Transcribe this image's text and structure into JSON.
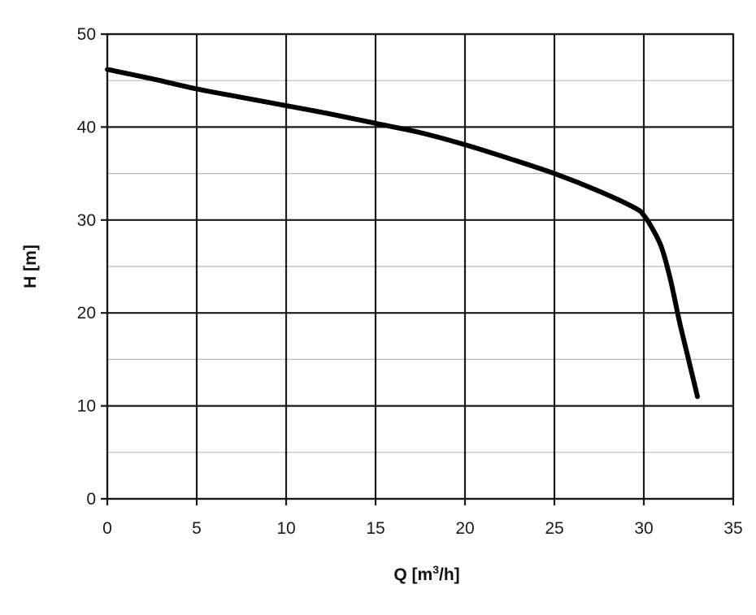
{
  "chart_data": {
    "type": "line",
    "title": "",
    "xlabel_main": "Q [m",
    "xlabel_sup": "3",
    "xlabel_tail": "/h]",
    "ylabel": "H [m]",
    "xlim": [
      0,
      35
    ],
    "ylim": [
      0,
      50
    ],
    "x_major_ticks": [
      0,
      5,
      10,
      15,
      20,
      25,
      30,
      35
    ],
    "y_major_ticks": [
      0,
      10,
      20,
      30,
      40,
      50
    ],
    "y_minor_ticks": [
      5,
      15,
      25,
      35,
      45
    ],
    "grid": true,
    "series": [
      {
        "color": "#000000",
        "x": [
          0,
          2.5,
          5,
          7.5,
          10,
          12.5,
          15,
          17.5,
          20,
          22.5,
          25,
          27.5,
          29.5,
          30,
          30.5,
          31,
          31.5,
          32,
          32.5,
          33
        ],
        "y": [
          46.2,
          45.2,
          44.1,
          43.2,
          42.3,
          41.4,
          40.4,
          39.4,
          38.1,
          36.6,
          35.0,
          33.1,
          31.3,
          30.5,
          29.0,
          27.0,
          23.5,
          19.0,
          15.0,
          11.0
        ]
      }
    ]
  }
}
